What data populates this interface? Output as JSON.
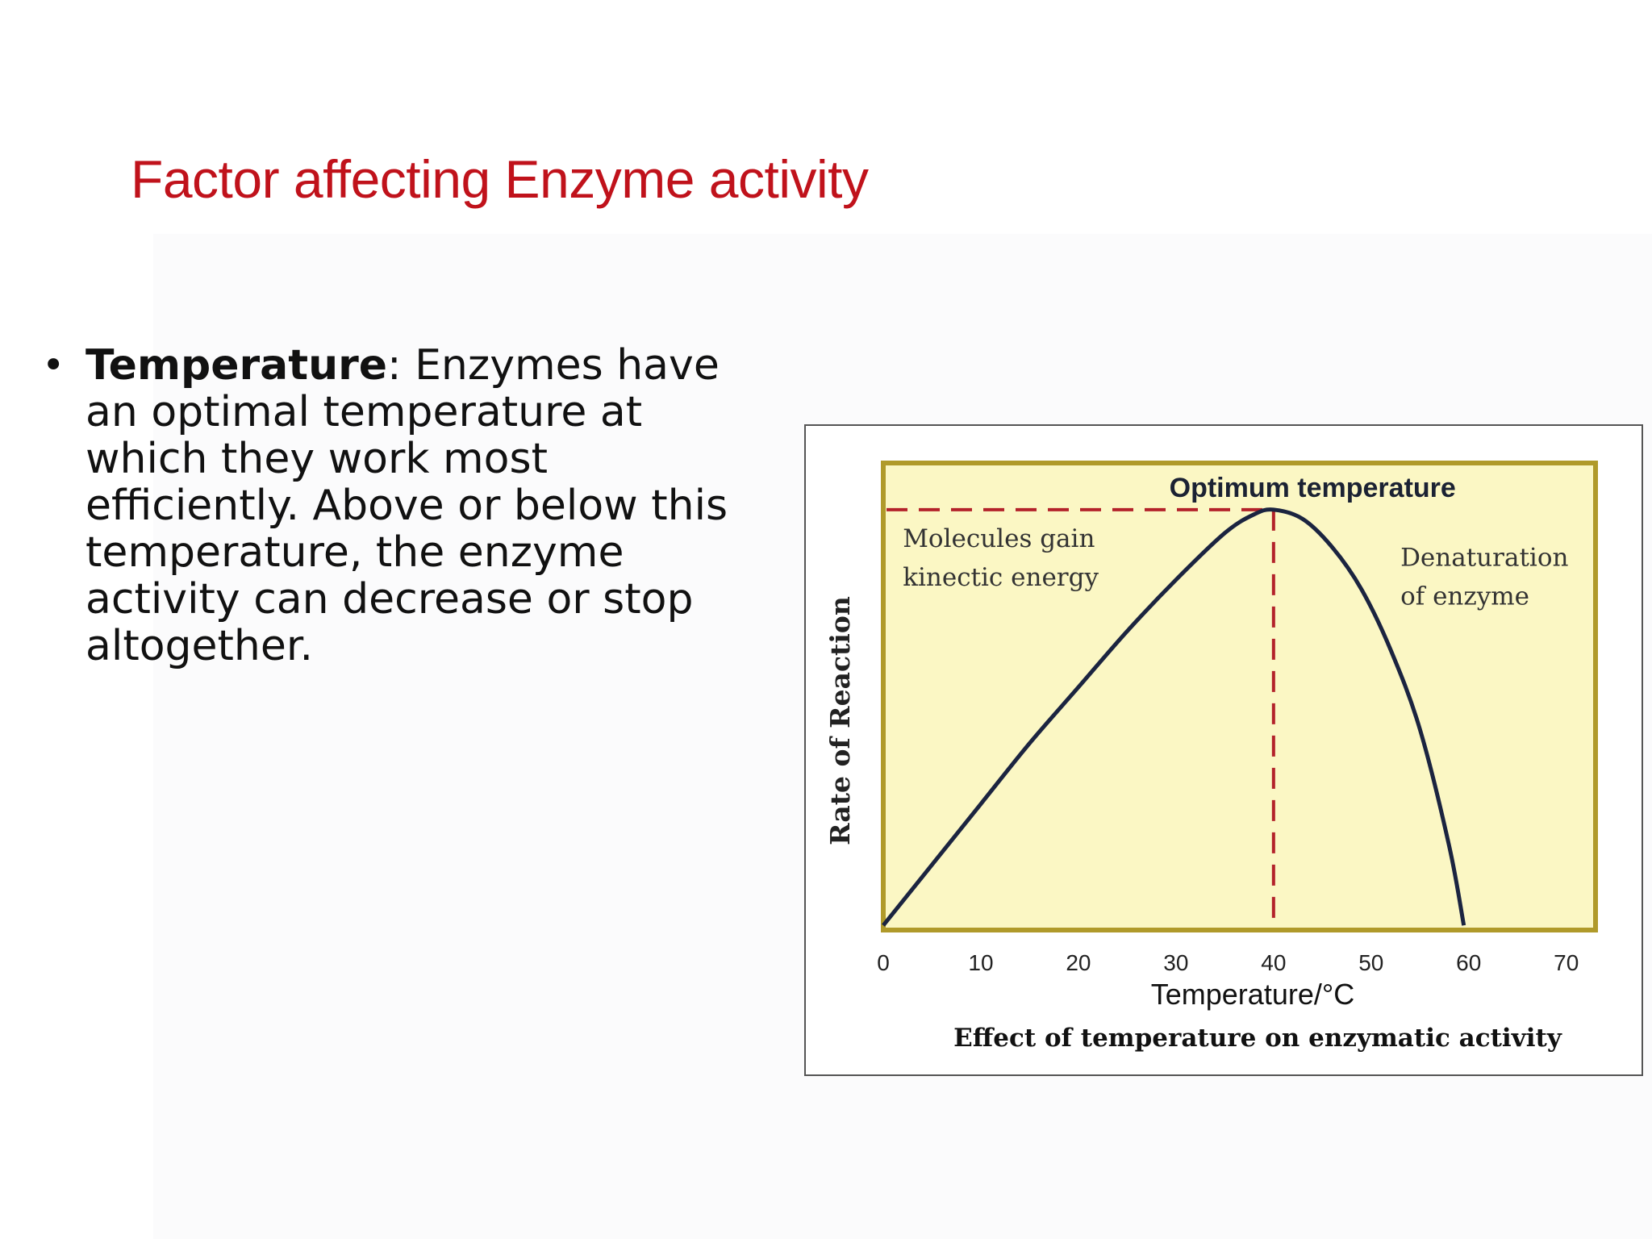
{
  "slide": {
    "title": "Factor affecting Enzyme activity",
    "bullet": {
      "term": "Temperature",
      "text": ": Enzymes have an optimal temperature at which they work most efficiently. Above or below this temperature, the enzyme activity can decrease or stop altogether."
    }
  },
  "chart_data": {
    "type": "line",
    "title": "Effect of temperature on enzymatic activity",
    "xlabel": "Temperature/°C",
    "ylabel": "Rate of Reaction",
    "xlim": [
      0,
      73
    ],
    "ylim": [
      0,
      100
    ],
    "x_ticks": [
      0,
      10,
      20,
      30,
      40,
      50,
      60,
      70
    ],
    "y_ticks_shown": false,
    "grid": false,
    "plot_background": "#fbf7c4",
    "plot_border_color": "#b09a2a",
    "series": [
      {
        "color": "#1b2440",
        "points": [
          [
            0,
            1
          ],
          [
            5,
            14
          ],
          [
            10,
            27
          ],
          [
            15,
            40
          ],
          [
            20,
            52
          ],
          [
            25,
            64
          ],
          [
            30,
            75
          ],
          [
            35,
            85
          ],
          [
            38,
            89
          ],
          [
            40,
            90
          ],
          [
            43,
            88
          ],
          [
            46,
            82
          ],
          [
            49,
            73
          ],
          [
            52,
            60
          ],
          [
            55,
            43
          ],
          [
            58,
            18
          ],
          [
            59.5,
            1
          ]
        ]
      }
    ],
    "reference_lines": {
      "color": "#b3222a",
      "style": "dashed",
      "x": 40,
      "y": 90
    },
    "annotations": [
      {
        "text": "Optimum temperature",
        "x": 44,
        "y": 100,
        "bold": true
      },
      {
        "lines": [
          "Molecules gain",
          "kinectic energy"
        ],
        "x": 2,
        "y": 82
      },
      {
        "lines": [
          "Denaturation",
          "of enzyme"
        ],
        "x": 53,
        "y": 78
      }
    ]
  }
}
